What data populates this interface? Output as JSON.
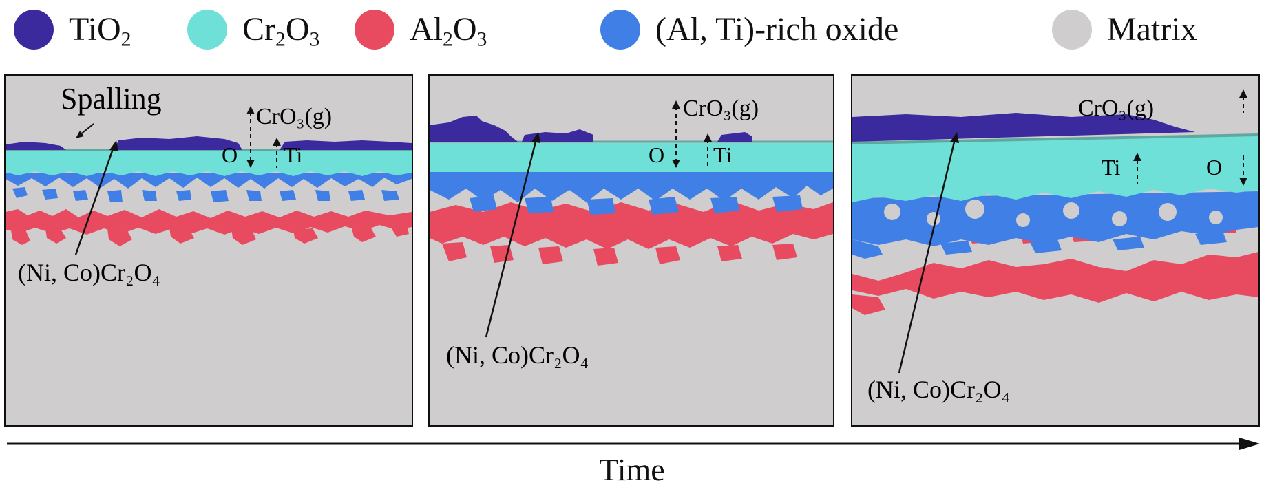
{
  "legend": {
    "items": [
      {
        "base": "TiO",
        "sub": "2",
        "rest": "",
        "color": "#3a2a9e"
      },
      {
        "base": "Cr",
        "sub": "2",
        "rest": "O",
        "sub2": "3",
        "color": "#6fe0d8"
      },
      {
        "base": "Al",
        "sub": "2",
        "rest": "O",
        "sub2": "3",
        "color": "#e84a5f"
      },
      {
        "base": "(Al, Ti)-rich oxide",
        "sub": "",
        "rest": "",
        "color": "#3f7fe6"
      },
      {
        "base": "Matrix",
        "sub": "",
        "rest": "",
        "color": "#cfcdcd"
      }
    ]
  },
  "panels": [
    {
      "spalling": "Spalling",
      "spinel_label": "(Ni, Co)Cr₂O₄",
      "cro3": "CrO₃(g)",
      "o": "O",
      "ti": "Ti"
    },
    {
      "spinel_label": "(Ni, Co)Cr₂O₄",
      "cro3": "CrO₃(g)",
      "o": "O",
      "ti": "Ti"
    },
    {
      "spinel_label": "(Ni, Co)Cr₂O₄",
      "cro3": "CrO₃(g)",
      "o": "O",
      "ti": "Ti"
    }
  ],
  "time_axis": {
    "label": "Time"
  }
}
